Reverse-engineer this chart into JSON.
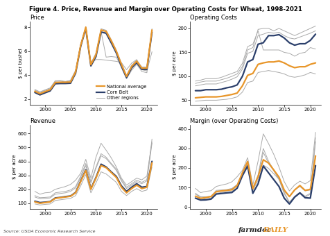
{
  "title": "Figure 4. Price, Revenue and Margin over Operating Costs for Wheat, 1998-2021",
  "source": "Source: USDA Economic Research Service",
  "farmdoc": "farmdoc",
  "daily": "DAILY",
  "years": [
    1998,
    1999,
    2000,
    2001,
    2002,
    2003,
    2004,
    2005,
    2006,
    2007,
    2008,
    2009,
    2010,
    2011,
    2012,
    2013,
    2014,
    2015,
    2016,
    2017,
    2018,
    2019,
    2020,
    2021
  ],
  "colors": {
    "national": "#E8962A",
    "corn_belt": "#2B3F6B",
    "other": "#AAAAAA",
    "brand_black": "#222222",
    "brand_orange": "#E8962A"
  },
  "price": {
    "title": "Price",
    "ylabel": "$ per bushel",
    "ylim": [
      1.5,
      8.5
    ],
    "yticks": [
      2.0,
      4.0,
      6.0,
      8.0
    ],
    "national": [
      2.65,
      2.45,
      2.62,
      2.78,
      3.38,
      3.4,
      3.4,
      3.42,
      4.26,
      6.48,
      8.0,
      4.87,
      5.7,
      7.77,
      7.65,
      6.87,
      5.99,
      4.89,
      3.89,
      4.72,
      5.16,
      4.58,
      4.58,
      7.77
    ],
    "corn_belt": [
      2.55,
      2.35,
      2.52,
      2.68,
      3.28,
      3.3,
      3.3,
      3.32,
      4.16,
      6.4,
      7.9,
      4.77,
      5.55,
      7.6,
      7.5,
      6.7,
      5.85,
      4.75,
      3.79,
      4.6,
      5.05,
      4.48,
      4.48,
      7.6
    ],
    "other1": [
      2.75,
      2.55,
      2.72,
      2.88,
      3.48,
      3.5,
      3.42,
      3.52,
      4.36,
      6.58,
      8.05,
      4.97,
      5.85,
      7.87,
      7.75,
      6.97,
      6.09,
      4.99,
      3.99,
      4.82,
      5.26,
      4.68,
      4.68,
      7.87
    ],
    "other2": [
      2.8,
      2.6,
      2.77,
      2.93,
      3.53,
      3.55,
      3.47,
      3.57,
      4.41,
      6.63,
      7.85,
      5.02,
      5.3,
      5.3,
      5.25,
      5.2,
      5.15,
      5.05,
      4.45,
      5.0,
      5.3,
      4.45,
      4.35,
      5.95
    ],
    "other3": [
      2.6,
      2.4,
      2.57,
      2.73,
      3.33,
      3.35,
      3.37,
      3.37,
      4.21,
      6.43,
      7.95,
      4.82,
      5.6,
      7.65,
      5.5,
      5.55,
      5.5,
      4.65,
      3.7,
      4.4,
      4.9,
      4.3,
      4.2,
      7.7
    ]
  },
  "opcosts": {
    "title": "Operating Costs",
    "ylabel": "$ per acre",
    "ylim": [
      40,
      215
    ],
    "yticks": [
      50,
      100,
      150,
      200
    ],
    "national": [
      55,
      56,
      57,
      57,
      57,
      58,
      60,
      62,
      65,
      80,
      102,
      106,
      125,
      128,
      130,
      130,
      132,
      128,
      122,
      118,
      120,
      120,
      125,
      128
    ],
    "corn_belt": [
      70,
      70,
      72,
      72,
      72,
      73,
      76,
      78,
      82,
      100,
      130,
      135,
      167,
      170,
      185,
      185,
      187,
      180,
      170,
      165,
      168,
      168,
      175,
      188
    ],
    "other1": [
      85,
      88,
      90,
      90,
      90,
      93,
      96,
      100,
      105,
      120,
      155,
      160,
      198,
      200,
      200,
      195,
      200,
      195,
      190,
      185,
      190,
      195,
      200,
      205
    ],
    "other2": [
      80,
      82,
      84,
      84,
      84,
      87,
      90,
      94,
      99,
      115,
      148,
      152,
      185,
      188,
      192,
      190,
      192,
      185,
      180,
      178,
      182,
      186,
      190,
      195
    ],
    "other3": [
      90,
      92,
      95,
      95,
      95,
      98,
      102,
      106,
      110,
      127,
      162,
      167,
      195,
      155,
      155,
      155,
      155,
      150,
      148,
      142,
      148,
      150,
      160,
      157
    ],
    "other4": [
      48,
      49,
      50,
      50,
      50,
      51,
      52,
      54,
      57,
      67,
      87,
      90,
      108,
      110,
      112,
      110,
      108,
      105,
      100,
      98,
      100,
      103,
      108,
      105
    ]
  },
  "revenue": {
    "title": "Revenue",
    "ylabel": "$ per acre",
    "ylim": [
      60,
      660
    ],
    "yticks": [
      100,
      200,
      300,
      400,
      500,
      600
    ],
    "national": [
      110,
      100,
      105,
      110,
      135,
      140,
      145,
      150,
      175,
      255,
      335,
      200,
      280,
      370,
      355,
      320,
      285,
      215,
      175,
      205,
      230,
      205,
      215,
      390
    ],
    "corn_belt": [
      115,
      105,
      108,
      112,
      138,
      142,
      148,
      152,
      178,
      260,
      340,
      205,
      285,
      380,
      360,
      325,
      292,
      225,
      185,
      215,
      240,
      215,
      220,
      400
    ],
    "other1": [
      155,
      140,
      142,
      145,
      175,
      180,
      185,
      195,
      220,
      295,
      385,
      255,
      360,
      455,
      430,
      385,
      345,
      270,
      215,
      240,
      265,
      250,
      270,
      560
    ],
    "other2": [
      145,
      132,
      135,
      138,
      165,
      170,
      175,
      185,
      210,
      285,
      370,
      245,
      350,
      440,
      420,
      378,
      335,
      260,
      205,
      230,
      255,
      240,
      260,
      530
    ],
    "other3": [
      185,
      165,
      175,
      178,
      200,
      210,
      220,
      235,
      265,
      315,
      415,
      280,
      430,
      530,
      480,
      425,
      360,
      280,
      230,
      255,
      280,
      268,
      295,
      540
    ],
    "other4": [
      95,
      88,
      92,
      95,
      120,
      125,
      130,
      135,
      155,
      225,
      305,
      175,
      245,
      325,
      310,
      280,
      250,
      185,
      155,
      185,
      205,
      185,
      195,
      360
    ]
  },
  "margin": {
    "title": "Margin (over Operating Costs)",
    "ylabel": "$ per acre",
    "ylim": [
      -10,
      420
    ],
    "yticks": [
      0,
      100,
      200,
      300,
      400
    ],
    "national": [
      55,
      44,
      48,
      53,
      78,
      82,
      85,
      88,
      110,
      175,
      233,
      94,
      155,
      242,
      225,
      190,
      153,
      87,
      53,
      87,
      110,
      85,
      90,
      262
    ],
    "corn_belt": [
      45,
      35,
      36,
      40,
      66,
      69,
      72,
      74,
      96,
      160,
      210,
      70,
      118,
      210,
      175,
      140,
      105,
      45,
      15,
      50,
      72,
      47,
      45,
      212
    ],
    "other1": [
      70,
      52,
      52,
      55,
      85,
      87,
      89,
      95,
      115,
      175,
      230,
      95,
      165,
      300,
      235,
      190,
      145,
      75,
      25,
      55,
      75,
      55,
      70,
      355
    ],
    "other2": [
      65,
      50,
      51,
      54,
      81,
      83,
      85,
      91,
      111,
      170,
      222,
      88,
      157,
      280,
      225,
      185,
      140,
      68,
      22,
      50,
      70,
      50,
      65,
      335
    ],
    "other3": [
      95,
      73,
      80,
      83,
      105,
      112,
      118,
      129,
      155,
      188,
      253,
      113,
      235,
      375,
      325,
      270,
      205,
      130,
      82,
      113,
      132,
      118,
      135,
      383
    ],
    "other4": [
      47,
      39,
      42,
      45,
      70,
      74,
      78,
      81,
      98,
      158,
      218,
      85,
      137,
      215,
      198,
      170,
      142,
      80,
      55,
      87,
      105,
      82,
      87,
      255
    ]
  }
}
